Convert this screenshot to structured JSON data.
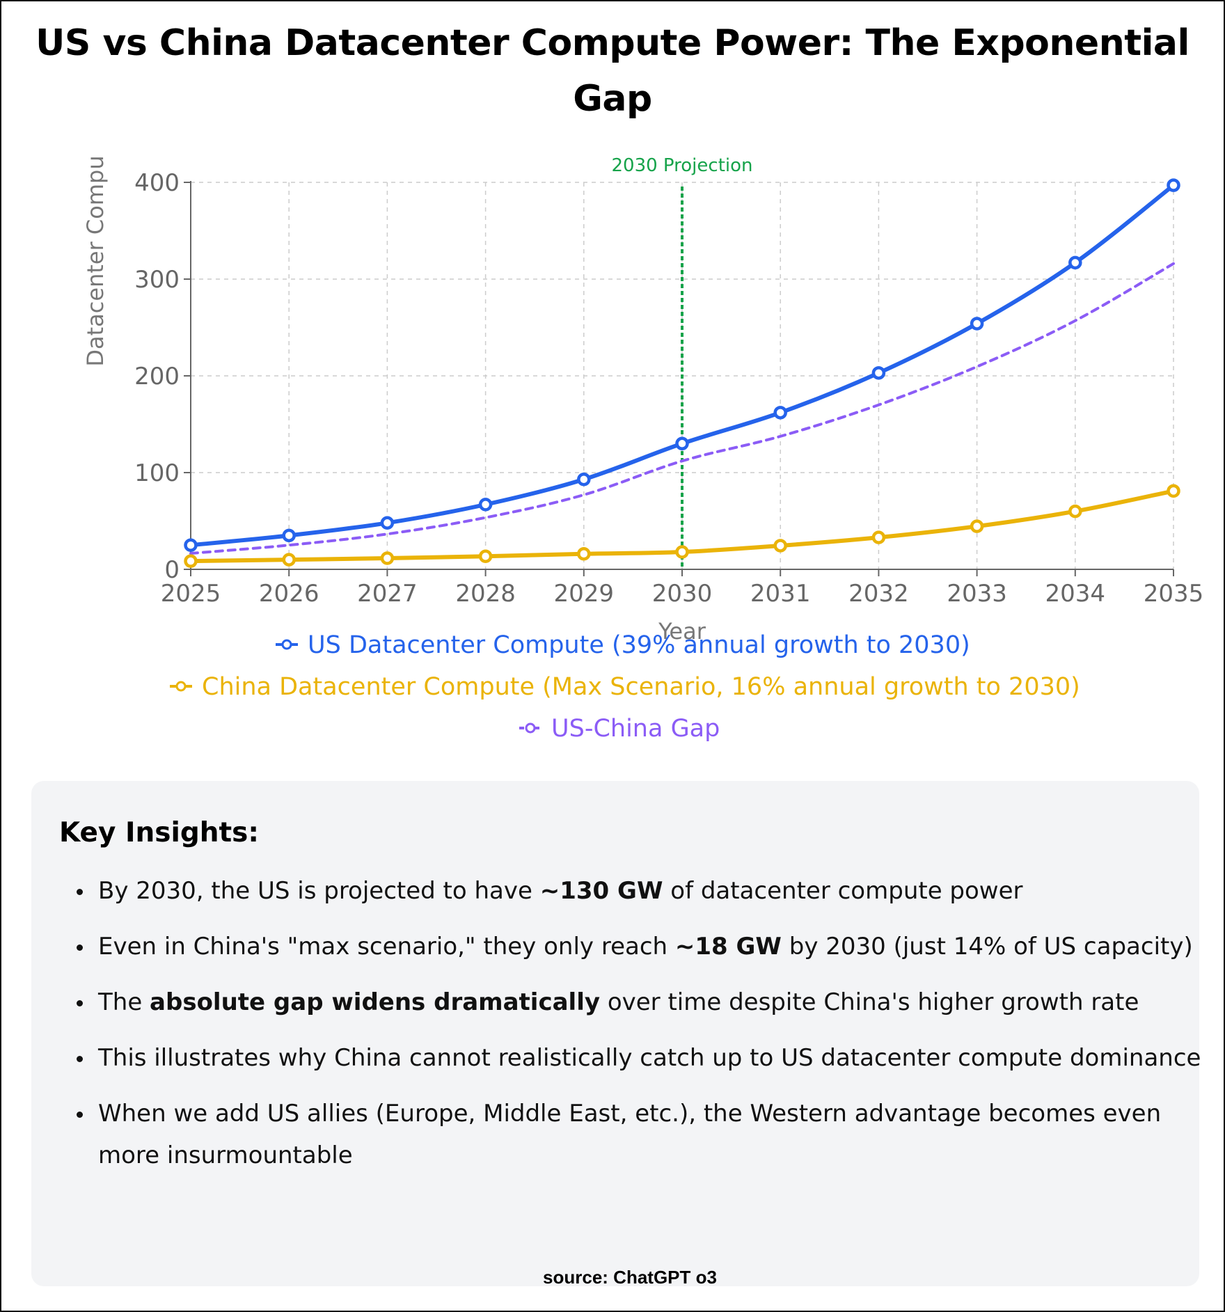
{
  "chart_data": {
    "type": "line",
    "title": "US vs China Datacenter Compute Power: The Exponential Gap",
    "xlabel": "Year",
    "ylabel": "Datacenter Compu",
    "x": [
      2025,
      2026,
      2027,
      2028,
      2029,
      2030,
      2031,
      2032,
      2033,
      2034,
      2035
    ],
    "ylim": [
      0,
      400
    ],
    "yticks": [
      0,
      100,
      200,
      300,
      400
    ],
    "grid": true,
    "legend_position": "bottom",
    "series": [
      {
        "name": "US Datacenter Compute (39% annual growth to 2030)",
        "color": "#2563eb",
        "style": "solid",
        "markers": true,
        "values": [
          25,
          35,
          48,
          67,
          93,
          130,
          162,
          203,
          254,
          317,
          397
        ]
      },
      {
        "name": "China Datacenter Compute (Max Scenario, 16% annual growth to 2030)",
        "color": "#eab308",
        "style": "solid",
        "markers": true,
        "values": [
          8.5,
          10,
          11.5,
          13.5,
          16,
          18,
          24.5,
          33,
          44.5,
          60,
          81
        ]
      },
      {
        "name": "US-China Gap",
        "color": "#8b5cf6",
        "style": "dashed",
        "markers": false,
        "values": [
          16.5,
          25,
          36.5,
          53.5,
          77,
          112,
          137.5,
          170,
          209.5,
          257,
          316
        ]
      }
    ],
    "annotations": [
      {
        "type": "vertical-line",
        "x": 2030,
        "label": "2030 Projection",
        "color": "#16a34a"
      }
    ]
  },
  "insights": {
    "heading": "Key Insights:",
    "items": [
      {
        "pre": "By 2030, the US is projected to have ",
        "bold": "~130 GW",
        "post": " of datacenter compute power"
      },
      {
        "pre": "Even in China's \"max scenario,\" they only reach ",
        "bold": "~18 GW",
        "post": " by 2030 (just 14% of US capacity)"
      },
      {
        "pre": "The ",
        "bold": "absolute gap widens dramatically",
        "post": " over time despite China's higher growth rate"
      },
      {
        "pre": "This illustrates why China cannot realistically catch up to US datacenter compute dominance",
        "bold": "",
        "post": ""
      },
      {
        "pre": "When we add US allies (Europe, Middle East, etc.), the Western advantage becomes even more insurmountable",
        "bold": "",
        "post": ""
      }
    ]
  },
  "source": "source: ChatGPT o3"
}
